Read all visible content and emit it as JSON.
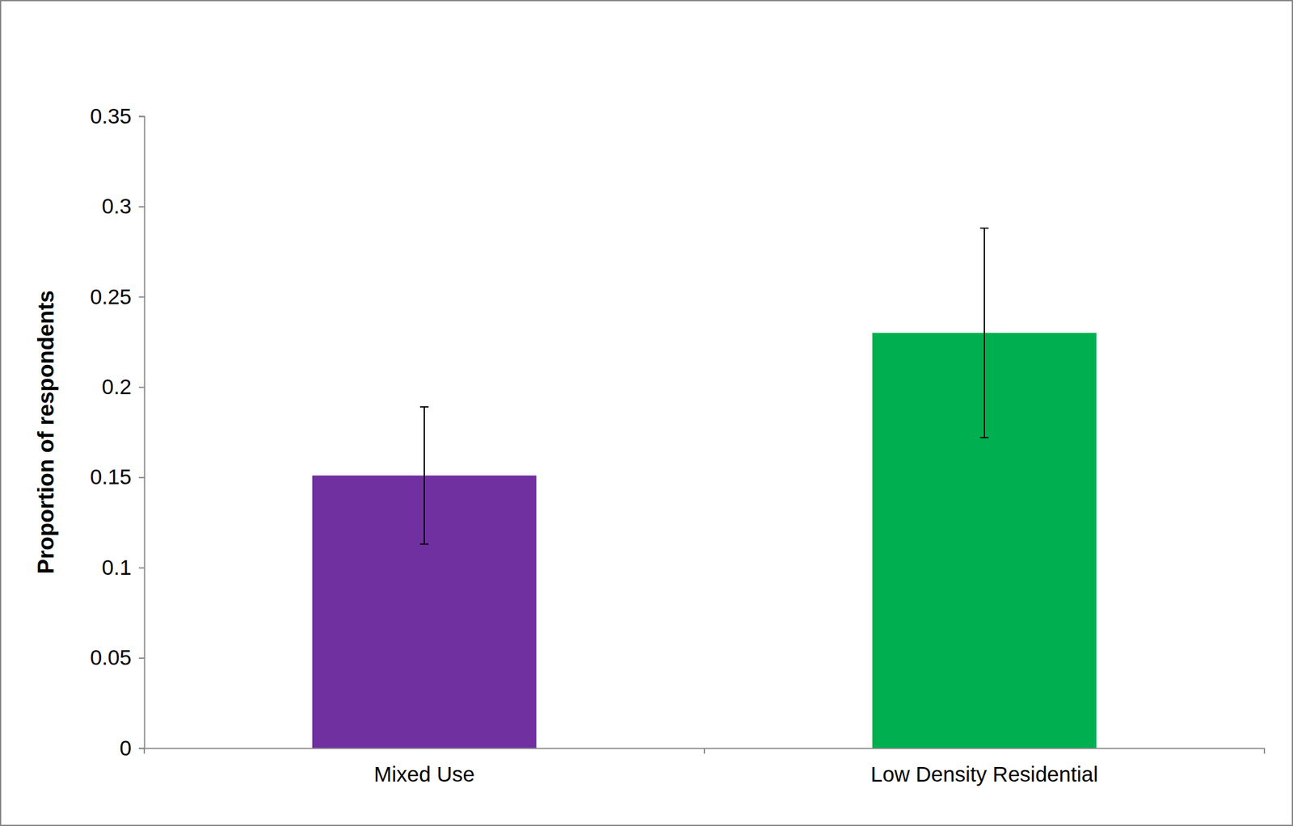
{
  "chart_data": {
    "type": "bar",
    "y_label": "Proportion of respondents",
    "categories": [
      "Mixed Use",
      "Low Density Residential"
    ],
    "values": [
      0.151,
      0.23
    ],
    "errors": [
      0.038,
      0.058
    ],
    "colors": [
      "#7030a0",
      "#00b050"
    ],
    "ylim": [
      0,
      0.35
    ],
    "yticks": [
      0,
      0.05,
      0.1,
      0.15,
      0.2,
      0.25,
      0.3,
      0.35
    ],
    "grid": false
  }
}
